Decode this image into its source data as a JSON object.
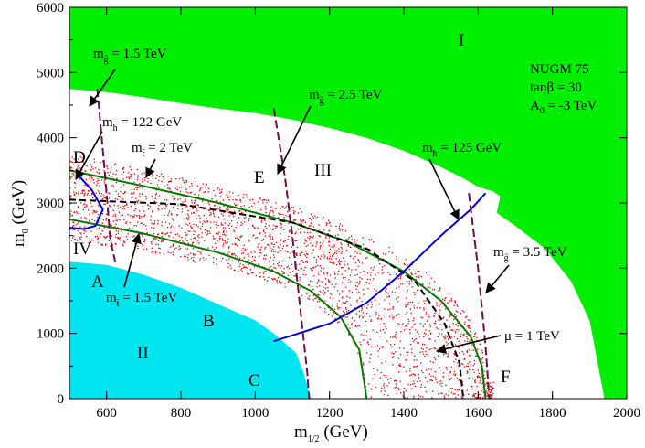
{
  "chart_data": {
    "type": "scatter",
    "xlabel": {
      "main": "m",
      "sub": "1/2",
      "unit": " (GeV)"
    },
    "ylabel": {
      "main": "m",
      "sub": "0",
      "unit": " (GeV)"
    },
    "xlim": [
      500,
      2000
    ],
    "ylim": [
      0,
      6000
    ],
    "xticks": [
      600,
      800,
      1000,
      1200,
      1400,
      1600,
      1800,
      2000
    ],
    "yticks": [
      0,
      1000,
      2000,
      3000,
      4000,
      5000,
      6000
    ],
    "colors": {
      "region_I": "#00ee00",
      "region_II": "#00e5f0",
      "scatter": "#dd0000",
      "stop_contours": "#007a00",
      "higgs_contours": "#0000dd",
      "gluino_contours": "#6b0f4a",
      "mu_contour": "#000000"
    },
    "info_box": {
      "model": "NUGM 75",
      "tanb": "tanβ = 30",
      "a0": {
        "main": "A",
        "sub": "0",
        "rest": " = -3 TeV"
      }
    },
    "region_labels": [
      "I",
      "II",
      "III",
      "IV"
    ],
    "point_labels": [
      "A",
      "B",
      "C",
      "D",
      "E",
      "F"
    ],
    "regions": {
      "I_boundary": [
        [
          500,
          4750
        ],
        [
          600,
          4700
        ],
        [
          700,
          4620
        ],
        [
          800,
          4530
        ],
        [
          900,
          4450
        ],
        [
          1000,
          4380
        ],
        [
          1100,
          4280
        ],
        [
          1200,
          4150
        ],
        [
          1300,
          4000
        ],
        [
          1400,
          3800
        ],
        [
          1500,
          3550
        ],
        [
          1560,
          3380
        ],
        [
          1600,
          3250
        ],
        [
          1640,
          3180
        ],
        [
          1660,
          3100
        ],
        [
          1650,
          2850
        ],
        [
          1700,
          2650
        ],
        [
          1780,
          2300
        ],
        [
          1850,
          1800
        ],
        [
          1900,
          1200
        ],
        [
          1940,
          0
        ]
      ],
      "II_boundary": [
        [
          500,
          2100
        ],
        [
          600,
          2050
        ],
        [
          700,
          1900
        ],
        [
          800,
          1700
        ],
        [
          900,
          1450
        ],
        [
          1000,
          1200
        ],
        [
          1050,
          1000
        ],
        [
          1110,
          700
        ],
        [
          1130,
          400
        ],
        [
          1150,
          0
        ]
      ]
    },
    "scatter_band": {
      "inner_m0_at_500": 2450,
      "outer_m0_at_500": 3750,
      "x_end": 1640,
      "n_points": 2600
    },
    "contours": {
      "stop_1p5_TeV": [
        [
          500,
          2750
        ],
        [
          700,
          2530
        ],
        [
          900,
          2240
        ],
        [
          1050,
          1950
        ],
        [
          1150,
          1650
        ],
        [
          1230,
          1250
        ],
        [
          1280,
          750
        ],
        [
          1300,
          0
        ]
      ],
      "stop_2_TeV": [
        [
          500,
          3500
        ],
        [
          700,
          3260
        ],
        [
          900,
          3000
        ],
        [
          1100,
          2700
        ],
        [
          1250,
          2400
        ],
        [
          1400,
          1950
        ],
        [
          1500,
          1500
        ],
        [
          1580,
          950
        ],
        [
          1610,
          500
        ],
        [
          1620,
          0
        ]
      ],
      "mu_1_TeV": [
        [
          500,
          3050
        ],
        [
          800,
          2980
        ],
        [
          1100,
          2700
        ],
        [
          1300,
          2300
        ],
        [
          1430,
          1800
        ],
        [
          1510,
          1150
        ],
        [
          1550,
          550
        ],
        [
          1560,
          0
        ]
      ],
      "higgs_122_GeV": [
        [
          520,
          3450
        ],
        [
          560,
          3200
        ],
        [
          590,
          2900
        ],
        [
          570,
          2650
        ],
        [
          540,
          2600
        ],
        [
          500,
          2620
        ]
      ],
      "higgs_125_GeV": [
        [
          1050,
          880
        ],
        [
          1200,
          1150
        ],
        [
          1300,
          1470
        ],
        [
          1400,
          1950
        ],
        [
          1500,
          2500
        ],
        [
          1580,
          2900
        ],
        [
          1620,
          3150
        ]
      ],
      "gluino_1p5_TeV": [
        [
          575,
          4750
        ],
        [
          595,
          3500
        ],
        [
          610,
          2450
        ],
        [
          625,
          2050
        ]
      ],
      "gluino_2p5_TeV": [
        [
          1050,
          4450
        ],
        [
          1080,
          3400
        ],
        [
          1100,
          2500
        ],
        [
          1140,
          400
        ],
        [
          1145,
          0
        ]
      ],
      "gluino_3p5_TeV": [
        [
          1575,
          3150
        ],
        [
          1600,
          2000
        ],
        [
          1620,
          800
        ],
        [
          1630,
          0
        ]
      ]
    },
    "annotations": [
      {
        "name": "gluino-1p5",
        "main": "m",
        "sub": "g̃",
        "rest": " = 1.5 TeV"
      },
      {
        "name": "higgs-122",
        "main": "m",
        "sub": "h",
        "rest": " = 122 GeV"
      },
      {
        "name": "stop-2",
        "main": "m",
        "sub": "t̃",
        "rest": " = 2 TeV"
      },
      {
        "name": "gluino-2p5",
        "main": "m",
        "sub": "g̃",
        "rest": " = 2.5 TeV"
      },
      {
        "name": "higgs-125",
        "main": "m",
        "sub": "h",
        "rest": " = 125 GeV"
      },
      {
        "name": "gluino-3p5",
        "main": "m",
        "sub": "g̃",
        "rest": " = 3.5 TeV"
      },
      {
        "name": "stop-1p5",
        "main": "m",
        "sub": "t̃",
        "rest": " = 1.5 TeV"
      },
      {
        "name": "mu-1",
        "main": "μ = 1 TeV"
      }
    ]
  }
}
